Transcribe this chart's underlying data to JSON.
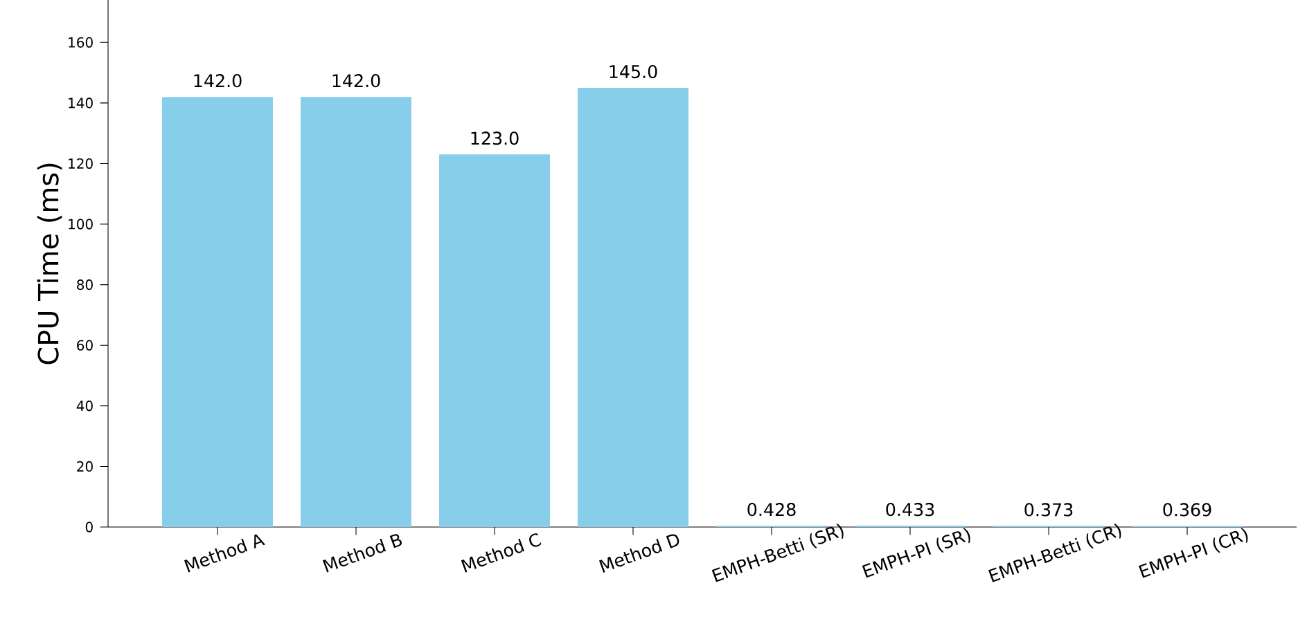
{
  "chart_data": {
    "type": "bar",
    "ylabel": "CPU Time (ms)",
    "categories": [
      "Method A",
      "Method B",
      "Method C",
      "Method D",
      "EMPH-Betti (SR)",
      "EMPH-PI (SR)",
      "EMPH-Betti (CR)",
      "EMPH-PI (CR)"
    ],
    "values": [
      142.0,
      142.0,
      123.0,
      145.0,
      0.428,
      0.433,
      0.373,
      0.369
    ],
    "value_labels": [
      "142.0",
      "142.0",
      "123.0",
      "145.0",
      "0.428",
      "0.433",
      "0.373",
      "0.369"
    ],
    "color": "#87ceeb",
    "ylim": [
      0,
      174
    ],
    "yticks": [
      0,
      20,
      40,
      60,
      80,
      100,
      120,
      140,
      160
    ],
    "grid": false
  }
}
